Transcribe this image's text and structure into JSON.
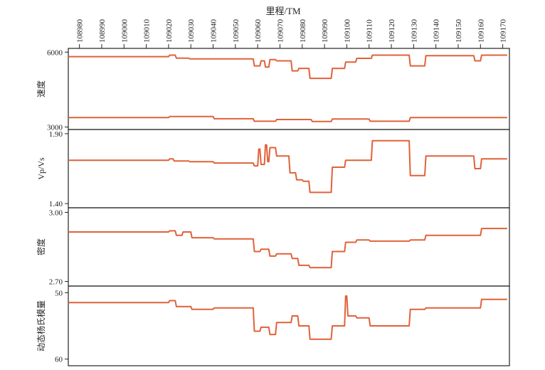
{
  "chart_data": {
    "type": "line",
    "xlabel": "里程/TM",
    "x_ticks": [
      108980,
      108990,
      109000,
      109010,
      109020,
      109030,
      109040,
      109050,
      109060,
      109070,
      109080,
      109090,
      109100,
      109110,
      109120,
      109130,
      109140,
      109150,
      109160,
      109170
    ],
    "xlim": [
      108975,
      109173
    ],
    "colors": {
      "series": "#e0623a",
      "frame": "#222222"
    },
    "panels": [
      {
        "ylabel": "速度",
        "ylim": [
          2900,
          6150
        ],
        "y_ticks": [
          6000,
          3000
        ],
        "y_tick_labels": [
          "6000",
          "3000"
        ],
        "series": [
          {
            "x": [
              108975,
              109020,
              109020.5,
              109023,
              109023.5,
              109029,
              109029.5,
              109058,
              109058.5,
              109061,
              109061.5,
              109063,
              109063.5,
              109065,
              109065.5,
              109068,
              109068.5,
              109075,
              109075.5,
              109078,
              109078.5,
              109083,
              109083.5,
              109093,
              109093.5,
              109099,
              109099.5,
              109104,
              109104.5,
              109111,
              109111.5,
              109128,
              109128.5,
              109135,
              109135.5,
              109157,
              109157.5,
              109160,
              109160.5,
              109172
            ],
            "y": [
              5820,
              5820,
              5880,
              5880,
              5760,
              5760,
              5730,
              5730,
              5450,
              5450,
              5650,
              5650,
              5400,
              5400,
              5700,
              5700,
              5650,
              5650,
              5250,
              5250,
              5350,
              5350,
              4950,
              4950,
              5350,
              5350,
              5600,
              5600,
              5750,
              5750,
              5880,
              5880,
              5450,
              5450,
              5860,
              5860,
              5650,
              5650,
              5880,
              5880
            ]
          },
          {
            "x": [
              108975,
              109020,
              109020.5,
              109040,
              109040.5,
              109058,
              109058.5,
              109068,
              109068.5,
              109084,
              109084.5,
              109093,
              109093.5,
              109110,
              109110.5,
              109128,
              109128.5,
              109172
            ],
            "y": [
              3380,
              3380,
              3420,
              3420,
              3330,
              3330,
              3230,
              3230,
              3300,
              3300,
              3220,
              3220,
              3320,
              3320,
              3230,
              3230,
              3380,
              3380
            ]
          }
        ]
      },
      {
        "ylabel": "Vp/Vs",
        "ylim": [
          1.37,
          1.93
        ],
        "y_ticks": [
          1.9,
          1.4
        ],
        "y_tick_labels": [
          "1.90",
          "1.40"
        ],
        "series": [
          {
            "x": [
              108975,
              109020,
              109020.5,
              109022,
              109022.5,
              109029,
              109029.5,
              109040,
              109040.5,
              109048,
              109048.5,
              109058,
              109058.5,
              109060,
              109060.5,
              109061,
              109061.5,
              109063,
              109063.5,
              109064,
              109064.5,
              109065,
              109065.5,
              109068,
              109068.5,
              109074,
              109074.5,
              109077,
              109077.5,
              109080,
              109080.5,
              109083,
              109083.5,
              109093,
              109093.5,
              109099,
              109099.5,
              109111,
              109111.5,
              109128,
              109128.5,
              109135,
              109135.5,
              109157,
              109157.5,
              109160,
              109160.5,
              109172
            ],
            "y": [
              1.71,
              1.71,
              1.72,
              1.72,
              1.705,
              1.705,
              1.7,
              1.7,
              1.69,
              1.69,
              1.69,
              1.69,
              1.67,
              1.67,
              1.79,
              1.79,
              1.68,
              1.68,
              1.82,
              1.82,
              1.7,
              1.7,
              1.8,
              1.8,
              1.74,
              1.74,
              1.62,
              1.62,
              1.57,
              1.57,
              1.56,
              1.56,
              1.48,
              1.48,
              1.66,
              1.66,
              1.71,
              1.71,
              1.85,
              1.85,
              1.6,
              1.6,
              1.74,
              1.74,
              1.65,
              1.65,
              1.72,
              1.72
            ]
          }
        ]
      },
      {
        "ylabel": "密度",
        "ylim": [
          2.68,
          3.02
        ],
        "y_ticks": [
          3.0,
          2.7
        ],
        "y_tick_labels": [
          "3.00",
          "2.70"
        ],
        "series": [
          {
            "x": [
              108975,
              109020,
              109020.5,
              109023,
              109023.5,
              109026,
              109026.5,
              109030,
              109030.5,
              109040,
              109040.5,
              109058,
              109058.5,
              109061,
              109061.5,
              109065,
              109065.5,
              109068,
              109068.5,
              109075,
              109075.5,
              109078,
              109078.5,
              109083,
              109083.5,
              109093,
              109093.5,
              109099,
              109099.5,
              109104,
              109104.5,
              109110,
              109110.5,
              109128,
              109128.5,
              109135,
              109135.5,
              109160,
              109160.5,
              109172
            ],
            "y": [
              2.915,
              2.915,
              2.92,
              2.92,
              2.9,
              2.9,
              2.915,
              2.915,
              2.89,
              2.89,
              2.885,
              2.885,
              2.83,
              2.83,
              2.84,
              2.84,
              2.81,
              2.81,
              2.82,
              2.82,
              2.8,
              2.8,
              2.77,
              2.77,
              2.76,
              2.76,
              2.83,
              2.83,
              2.87,
              2.87,
              2.88,
              2.88,
              2.875,
              2.875,
              2.88,
              2.88,
              2.9,
              2.9,
              2.93,
              2.93
            ]
          }
        ]
      },
      {
        "ylabel": "动态杨氏模量",
        "ylim": [
          49,
          61
        ],
        "invert_y": true,
        "y_ticks": [
          50,
          60
        ],
        "y_tick_labels": [
          "50",
          "60"
        ],
        "series": [
          {
            "x": [
              108975,
              109020,
              109020.5,
              109023,
              109023.5,
              109030,
              109030.5,
              109040,
              109040.5,
              109058,
              109058.5,
              109061,
              109061.5,
              109065,
              109065.5,
              109068,
              109068.5,
              109075,
              109075.5,
              109078,
              109078.5,
              109083,
              109083.5,
              109093,
              109093.5,
              109099,
              109099.5,
              109100,
              109100.5,
              109104,
              109104.5,
              109110,
              109110.5,
              109128,
              109128.5,
              109135,
              109135.5,
              109160,
              109160.5,
              109172
            ],
            "y": [
              51.5,
              51.5,
              51.2,
              51.2,
              52.1,
              52.1,
              52.5,
              52.5,
              52.3,
              52.3,
              55.8,
              55.8,
              55.2,
              55.2,
              56.3,
              56.3,
              54.5,
              54.5,
              53.5,
              53.5,
              55.0,
              55.0,
              57.0,
              57.0,
              55.0,
              55.0,
              50.5,
              50.5,
              53.5,
              53.5,
              53.8,
              53.8,
              55.0,
              55.0,
              52.5,
              52.5,
              52.3,
              52.3,
              51.0,
              51.0
            ]
          }
        ]
      }
    ]
  }
}
